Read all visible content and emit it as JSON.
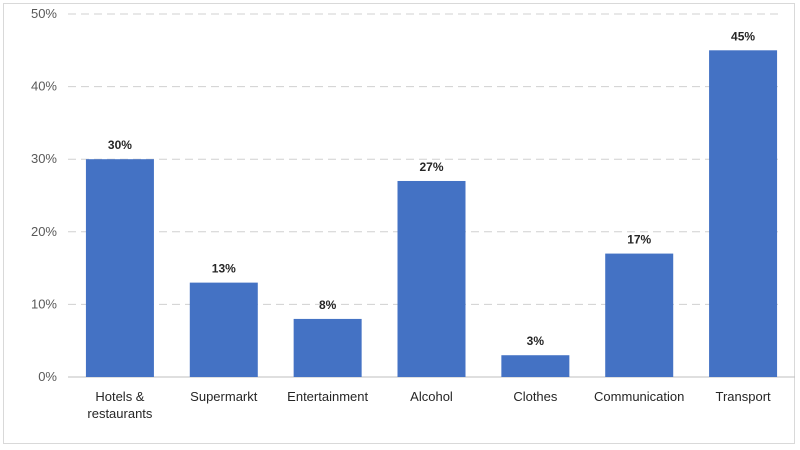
{
  "chart_data": {
    "type": "bar",
    "categories": [
      [
        "Hotels &",
        "restaurants"
      ],
      [
        "Supermarkt"
      ],
      [
        "Entertainment"
      ],
      [
        "Alcohol"
      ],
      [
        "Clothes"
      ],
      [
        "Communication"
      ],
      [
        "Transport"
      ]
    ],
    "values": [
      30,
      13,
      8,
      27,
      3,
      17,
      45
    ],
    "data_labels": [
      "30%",
      "13%",
      "8%",
      "27%",
      "3%",
      "17%",
      "45%"
    ],
    "title": "",
    "xlabel": "",
    "ylabel": "",
    "ylim": [
      0,
      50
    ],
    "yticks": [
      0,
      10,
      20,
      30,
      40,
      50
    ],
    "ytick_labels": [
      "0%",
      "10%",
      "20%",
      "30%",
      "40%",
      "50%"
    ],
    "grid": true,
    "legend": "none",
    "colors": {
      "bar": "#4472C4",
      "grid": "#d0d0d0",
      "axis": "#bfbfbf"
    }
  }
}
